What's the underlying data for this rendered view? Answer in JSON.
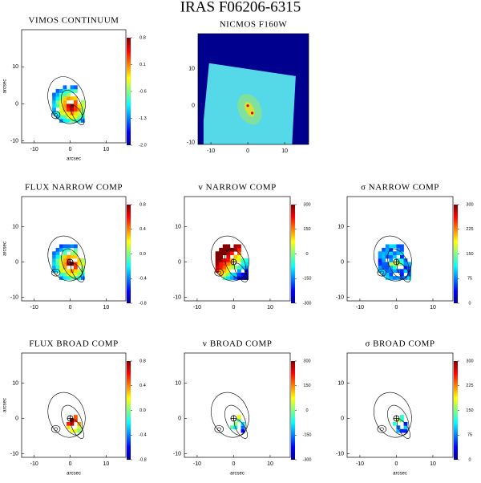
{
  "title": "IRAS F06206-6315",
  "chart_data": [
    {
      "type": "heatmap",
      "title": "VIMOS CONTINUUM",
      "xlabel": "arcsec",
      "ylabel": "arcsec",
      "xlim": [
        -13.5,
        15.5
      ],
      "ylim": [
        -10.5,
        20
      ],
      "xticks": [
        -10,
        0,
        10
      ],
      "yticks": [
        -10,
        0,
        10
      ],
      "clim": [
        -2,
        0.8
      ],
      "cticks": [
        0.8,
        0.1,
        -0.6,
        -1.3,
        {
          "value": -2,
          "label": "-2.0"
        }
      ]
    },
    {
      "type": "image",
      "title": "NICMOS F160W",
      "xlim": [
        -13.5,
        16.5
      ],
      "ylim": [
        -10.5,
        19.5
      ],
      "xticks": [
        -10,
        0,
        10
      ],
      "yticks": [
        -10,
        0,
        10
      ]
    },
    {
      "type": "heatmap",
      "title": "FLUX NARROW COMP",
      "ylabel": "arcsec",
      "xlim": [
        -13.5,
        15.5
      ],
      "ylim": [
        -11,
        18.5
      ],
      "xticks": [
        -10,
        0,
        10
      ],
      "yticks": [
        -10,
        0,
        10
      ],
      "clim": [
        -0.8,
        0.8
      ],
      "cticks": [
        0.8,
        0.4,
        {
          "value": 0,
          "label": "0.0"
        },
        -0.4,
        -0.8
      ]
    },
    {
      "type": "heatmap",
      "title": "v NARROW COMP",
      "xlim": [
        -13.5,
        15.5
      ],
      "ylim": [
        -11,
        18.5
      ],
      "xticks": [
        -10,
        0,
        10
      ],
      "yticks": [
        -10,
        0,
        10
      ],
      "clim": [
        -300,
        300
      ],
      "cticks": [
        300,
        150,
        0,
        -150,
        -300
      ]
    },
    {
      "type": "heatmap",
      "title": "σ NARROW COMP",
      "xlim": [
        -13.5,
        15.5
      ],
      "ylim": [
        -11,
        18.5
      ],
      "xticks": [
        -10,
        0,
        10
      ],
      "yticks": [
        -10,
        0,
        10
      ],
      "clim": [
        0,
        300
      ],
      "cticks": [
        300,
        225,
        150,
        75,
        0
      ]
    },
    {
      "type": "heatmap",
      "title": "FLUX BROAD COMP",
      "xlabel": "arcsec",
      "ylabel": "arcsec",
      "xlim": [
        -13.5,
        15.5
      ],
      "ylim": [
        -11,
        18.5
      ],
      "xticks": [
        -10,
        0,
        10
      ],
      "yticks": [
        -10,
        0,
        10
      ],
      "clim": [
        -0.8,
        0.8
      ],
      "cticks": [
        0.8,
        0.4,
        {
          "value": 0,
          "label": "0.0"
        },
        -0.4,
        -0.8
      ]
    },
    {
      "type": "heatmap",
      "title": "v BROAD COMP",
      "xlabel": "arcsec",
      "xlim": [
        -13.5,
        15.5
      ],
      "ylim": [
        -11,
        18.5
      ],
      "xticks": [
        -10,
        0,
        10
      ],
      "yticks": [
        -10,
        0,
        10
      ],
      "clim": [
        -300,
        300
      ],
      "cticks": [
        300,
        150,
        0,
        -150,
        -300
      ]
    },
    {
      "type": "heatmap",
      "title": "σ BROAD COMP",
      "xlabel": "arcsec",
      "xlim": [
        -13.5,
        15.5
      ],
      "ylim": [
        -11,
        18.5
      ],
      "xticks": [
        -10,
        0,
        10
      ],
      "yticks": [
        -10,
        0,
        10
      ],
      "clim": [
        0,
        300
      ],
      "cticks": [
        300,
        225,
        150,
        75,
        0
      ]
    }
  ]
}
